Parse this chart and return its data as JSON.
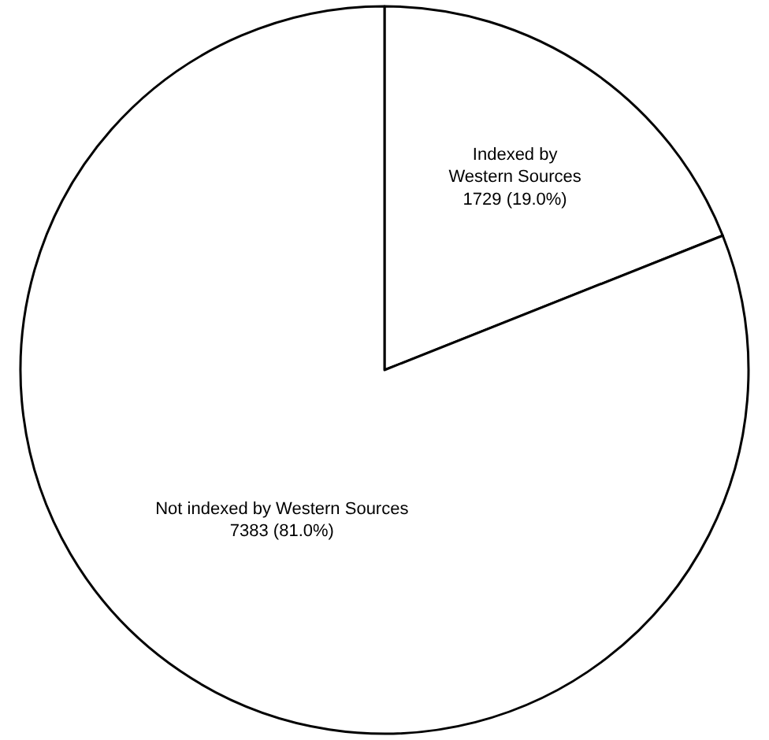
{
  "chart_data": {
    "type": "pie",
    "categories": [
      "Indexed by Western Sources",
      "Not indexed by Western Sources"
    ],
    "values": [
      1729,
      7383
    ],
    "value_labels": [
      "1729 (19.0%)",
      "7383 (81.0%)"
    ],
    "colors": [
      "#ffffff",
      "#ffffff"
    ],
    "legend": false
  }
}
